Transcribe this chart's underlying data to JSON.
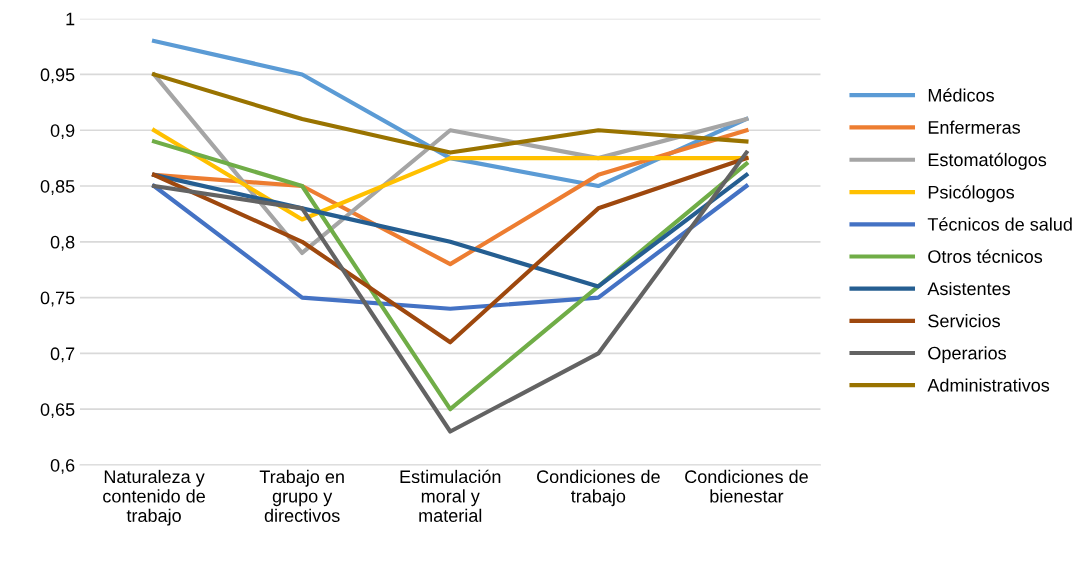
{
  "chart_data": {
    "type": "line",
    "categories": [
      "Naturaleza y\ncontenido de\ntrabajo",
      "Trabajo en\ngrupo y\ndirectivos",
      "Estimulación\nmoral y\nmaterial",
      "Condiciones de\ntrabajo",
      "Condiciones de\nbienestar"
    ],
    "series": [
      {
        "name": "Médicos",
        "color": "#5b9bd5",
        "values": [
          0.98,
          0.95,
          0.875,
          0.85,
          0.91
        ]
      },
      {
        "name": "Enfermeras",
        "color": "#ed7d31",
        "values": [
          0.86,
          0.85,
          0.78,
          0.86,
          0.9
        ]
      },
      {
        "name": "Estomatólogos",
        "color": "#a5a5a5",
        "values": [
          0.95,
          0.79,
          0.9,
          0.875,
          0.91
        ]
      },
      {
        "name": "Psicólogos",
        "color": "#ffc000",
        "values": [
          0.9,
          0.82,
          0.875,
          0.875,
          0.875
        ]
      },
      {
        "name": "Técnicos de salud",
        "color": "#4472c4",
        "values": [
          0.85,
          0.75,
          0.74,
          0.75,
          0.85
        ]
      },
      {
        "name": "Otros técnicos",
        "color": "#70ad47",
        "values": [
          0.89,
          0.85,
          0.65,
          0.76,
          0.87
        ]
      },
      {
        "name": "Asistentes",
        "color": "#255e91",
        "values": [
          0.86,
          0.83,
          0.8,
          0.76,
          0.86
        ]
      },
      {
        "name": "Servicios",
        "color": "#9e480e",
        "values": [
          0.86,
          0.8,
          0.71,
          0.83,
          0.875
        ]
      },
      {
        "name": "Operarios",
        "color": "#636363",
        "values": [
          0.85,
          0.83,
          0.63,
          0.7,
          0.88
        ]
      },
      {
        "name": "Administrativos",
        "color": "#997300",
        "values": [
          0.95,
          0.91,
          0.88,
          0.9,
          0.89
        ]
      }
    ],
    "ylim": [
      0.6,
      1
    ],
    "yticks": [
      {
        "value": 0.6,
        "label": "0,6"
      },
      {
        "value": 0.65,
        "label": "0,65"
      },
      {
        "value": 0.7,
        "label": "0,7"
      },
      {
        "value": 0.75,
        "label": "0,75"
      },
      {
        "value": 0.8,
        "label": "0,8"
      },
      {
        "value": 0.85,
        "label": "0,85"
      },
      {
        "value": 0.9,
        "label": "0,9"
      },
      {
        "value": 0.95,
        "label": "0,95"
      },
      {
        "value": 1,
        "label": "1"
      }
    ],
    "grid": "y",
    "legend": "right",
    "marker": "none",
    "line_style": "solid"
  }
}
